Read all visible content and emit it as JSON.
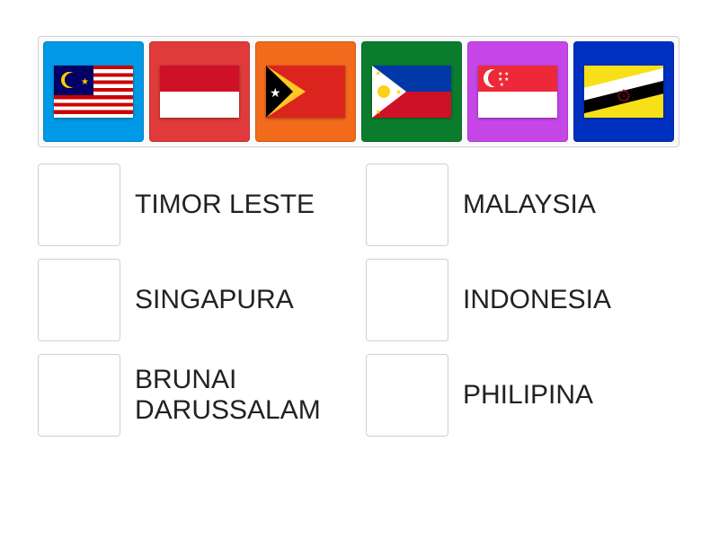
{
  "tiles": [
    {
      "name": "flag-malaysia",
      "bg": "#0099e5",
      "flag": "my"
    },
    {
      "name": "flag-indonesia",
      "bg": "#e03a3a",
      "flag": "id"
    },
    {
      "name": "flag-timor-leste",
      "bg": "#f26a1b",
      "flag": "tl"
    },
    {
      "name": "flag-philippines",
      "bg": "#0a7d2c",
      "flag": "ph"
    },
    {
      "name": "flag-singapore",
      "bg": "#c646e8",
      "flag": "sg"
    },
    {
      "name": "flag-brunei",
      "bg": "#0030c0",
      "flag": "bn"
    }
  ],
  "answers": [
    {
      "label": "TIMOR LESTE"
    },
    {
      "label": "MALAYSIA"
    },
    {
      "label": "SINGAPURA"
    },
    {
      "label": "INDONESIA"
    },
    {
      "label": "BRUNAI DARUSSALAM"
    },
    {
      "label": "PHILIPINA"
    }
  ],
  "label_fontsize": 30,
  "label_color": "#222222",
  "tile_size": 112,
  "drop_size": 92
}
